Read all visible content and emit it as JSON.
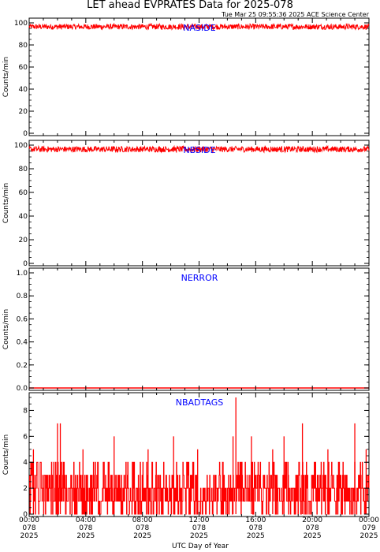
{
  "title": "LET ahead EVPRATES Data for 2025-078",
  "timestamp": "Tue Mar 25 09:55:36 2025 ACE Science Center",
  "xlabel": "UTC Day of Year",
  "colors": {
    "data": "#ff0000",
    "label": "#0000ff",
    "axis": "#000000"
  },
  "chart_data": [
    {
      "type": "line",
      "label": "NASIDE",
      "ylabel": "Counts/min",
      "ylim": [
        0,
        100
      ],
      "yticks": [
        "0",
        "20",
        "40",
        "60",
        "80",
        "100"
      ],
      "ytick_values": [
        0,
        20,
        40,
        60,
        80,
        100
      ],
      "band": [
        94,
        99
      ],
      "xlim": [
        0,
        24
      ]
    },
    {
      "type": "line",
      "label": "NBSIDE",
      "ylabel": "Counts/min",
      "ylim": [
        0,
        100
      ],
      "yticks": [
        "0",
        "20",
        "40",
        "60",
        "80",
        "100"
      ],
      "ytick_values": [
        0,
        20,
        40,
        60,
        80,
        100
      ],
      "band": [
        94,
        99
      ],
      "xlim": [
        0,
        24
      ]
    },
    {
      "type": "line",
      "label": "NERROR",
      "ylabel": "Counts/min",
      "ylim": [
        0,
        1
      ],
      "yticks": [
        "0.0",
        "0.2",
        "0.4",
        "0.6",
        "0.8",
        "1.0"
      ],
      "ytick_values": [
        0,
        0.2,
        0.4,
        0.6,
        0.8,
        1.0
      ],
      "constant": 0,
      "xlim": [
        0,
        24
      ]
    },
    {
      "type": "line",
      "label": "NBADTAGS",
      "ylabel": "Counts/min",
      "ylim": [
        0,
        9
      ],
      "yticks": [
        "0",
        "2",
        "4",
        "6",
        "8"
      ],
      "ytick_values": [
        0,
        2,
        4,
        6,
        8
      ],
      "typical_range": [
        0,
        4
      ],
      "spikes": [
        {
          "x": 2.0,
          "y": 7
        },
        {
          "x": 2.2,
          "y": 7
        },
        {
          "x": 6.0,
          "y": 6
        },
        {
          "x": 10.2,
          "y": 6
        },
        {
          "x": 14.4,
          "y": 6
        },
        {
          "x": 14.6,
          "y": 9
        },
        {
          "x": 15.7,
          "y": 6
        },
        {
          "x": 18.0,
          "y": 6
        },
        {
          "x": 19.3,
          "y": 7
        },
        {
          "x": 23.0,
          "y": 7
        },
        {
          "x": 0.3,
          "y": 5
        },
        {
          "x": 3.8,
          "y": 5
        },
        {
          "x": 8.4,
          "y": 5
        },
        {
          "x": 11.9,
          "y": 5
        },
        {
          "x": 17.2,
          "y": 5
        },
        {
          "x": 21.1,
          "y": 5
        },
        {
          "x": 23.8,
          "y": 5
        }
      ],
      "xlim": [
        0,
        24
      ]
    }
  ],
  "x_ticks": [
    {
      "time": "00:00",
      "doy": "078",
      "year": "2025",
      "value": 0
    },
    {
      "time": "04:00",
      "doy": "078",
      "year": "2025",
      "value": 4
    },
    {
      "time": "08:00",
      "doy": "078",
      "year": "2025",
      "value": 8
    },
    {
      "time": "12:00",
      "doy": "078",
      "year": "2025",
      "value": 12
    },
    {
      "time": "16:00",
      "doy": "078",
      "year": "2025",
      "value": 16
    },
    {
      "time": "20:00",
      "doy": "078",
      "year": "2025",
      "value": 20
    },
    {
      "time": "00:00",
      "doy": "079",
      "year": "2025",
      "value": 24
    }
  ]
}
